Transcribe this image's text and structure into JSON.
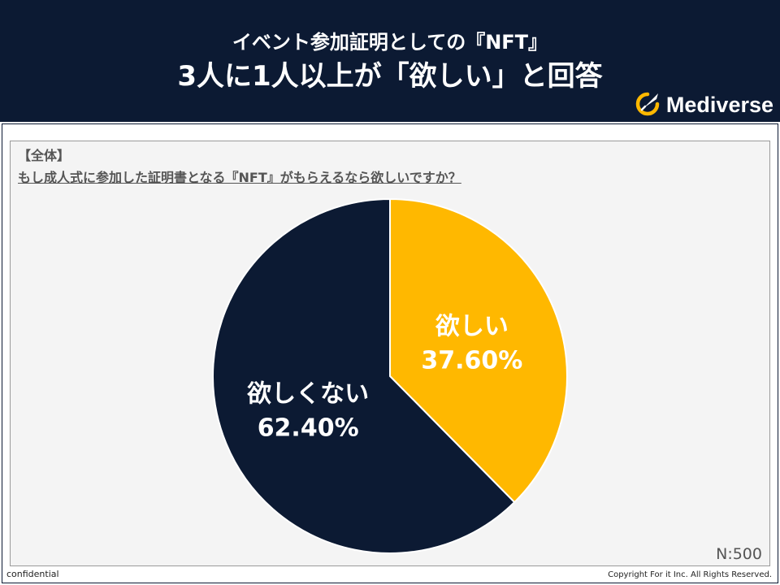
{
  "header": {
    "title_line1": "イベント参加証明としての『NFT』",
    "title_line2": "3人に1人以上が「欲しい」と回答",
    "logo_text": "Mediverse"
  },
  "question": {
    "tag": "【全体】",
    "text": "もし成人式に参加した証明書となる『NFT』がもらえるなら欲しいですか？"
  },
  "sample_size": "N:500",
  "footer": {
    "left": "confidential",
    "right": "Copyright For it Inc. All Rights Reserved."
  },
  "colors": {
    "navy": "#0c1a33",
    "gold": "#ffb800",
    "panel": "#f4f4f4"
  },
  "chart_data": {
    "type": "pie",
    "slices": [
      {
        "label": "欲しい",
        "value": 37.6,
        "value_label": "37.60%",
        "color": "#ffb800"
      },
      {
        "label": "欲しくない",
        "value": 62.4,
        "value_label": "62.40%",
        "color": "#0c1a33"
      }
    ],
    "start_angle": "12 o'clock",
    "direction": "clockwise"
  }
}
